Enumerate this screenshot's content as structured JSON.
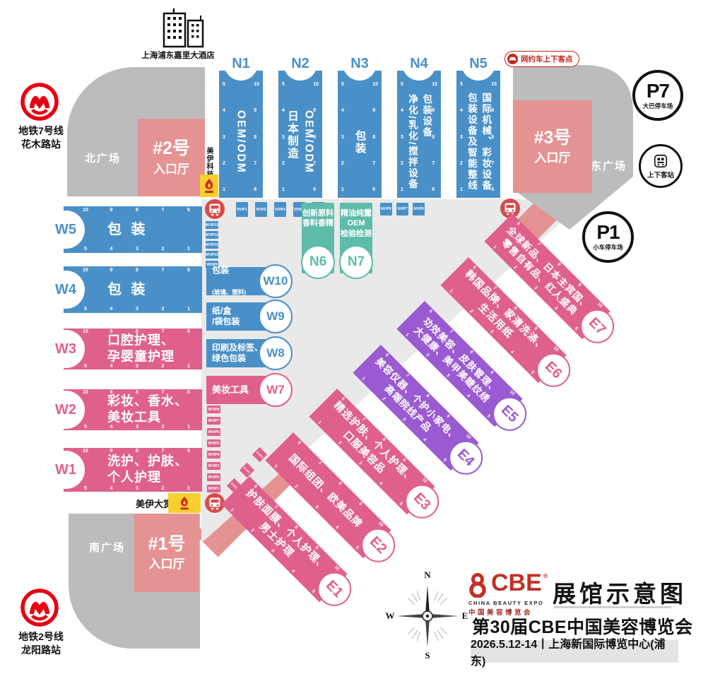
{
  "hotel": {
    "label": "上海浦东嘉里大酒店"
  },
  "metro7": {
    "label": "地铁7号线\n花木路站"
  },
  "metro2": {
    "label": "地铁2号线\n龙阳路站"
  },
  "plazas": {
    "north": "北广场",
    "east": "东广场",
    "south": "南广场"
  },
  "entrances": {
    "e2": {
      "no": "#2号",
      "hall": "入口厅"
    },
    "e3": {
      "no": "#3号",
      "hall": "入口厅"
    },
    "e1": {
      "no": "#1号",
      "hall": "入口厅"
    }
  },
  "parking": {
    "p7": {
      "code": "P7",
      "label": "大巴停车场"
    },
    "p1": {
      "code": "P1",
      "label": "小车停车场"
    },
    "dropoff": {
      "label": "上下客站"
    },
    "rideshare": {
      "label": "网约车上下客点"
    }
  },
  "sponsor": {
    "tech": "美伊科技",
    "award": "美伊大赏"
  },
  "halls": {
    "n": [
      {
        "code": "N1",
        "text": [
          "OEM/ODM"
        ],
        "ticks_left": "5 4 3 2 1",
        "ticks_right": "10 9 8 7 6"
      },
      {
        "code": "N2",
        "text": [
          "OEM/ODM",
          "日本制造"
        ],
        "ticks_left": "5 4 3 2 1",
        "ticks_right": "10 9 8 7 6"
      },
      {
        "code": "N3",
        "text": [
          "包装"
        ],
        "ticks_left": "5 4 3 2 1",
        "ticks_right": "10 9 8 7 6"
      },
      {
        "code": "N4",
        "text": [
          "包装设备",
          "净化/乳化/搅拌设备"
        ],
        "ticks_left": "5 4 3 2 1",
        "ticks_right": "10 9 8 7 6"
      },
      {
        "code": "N5",
        "text": [
          "国际机械、彩妆设备",
          "包装设备及智能整线"
        ],
        "ticks_left": "5 4 3 2 1",
        "ticks_right": "10 9 8 7 6"
      }
    ],
    "n_special": [
      {
        "code": "N6",
        "text": [
          "创新原料",
          "香料香精"
        ]
      },
      {
        "code": "N7",
        "text": [
          "精油纯露",
          "OEM",
          "检验检测"
        ]
      }
    ],
    "w": [
      {
        "code": "W5",
        "label": [
          "包 装"
        ],
        "ticks_top": "10 9 8 7 6",
        "ticks_bottom": "5 4 3 2 1"
      },
      {
        "code": "W4",
        "label": [
          "包 装"
        ],
        "ticks_top": "10 9 8 7 6",
        "ticks_bottom": "5 4 3 2 1"
      },
      {
        "code": "W3",
        "label": [
          "口腔护理、",
          "孕婴童护理"
        ],
        "ticks_top": "10 9 8 7 6",
        "ticks_bottom": "5 4 3 2 1"
      },
      {
        "code": "W2",
        "label": [
          "彩妆、香水、",
          "美妆工具"
        ],
        "ticks_top": "10 9 8 7 6",
        "ticks_bottom": "5 4 3 2 1"
      },
      {
        "code": "W1",
        "label": [
          "洗护、护肤、",
          "个人护理"
        ],
        "ticks_top": "10 9 8 7 6",
        "ticks_bottom": "5 4 3 2 1"
      }
    ],
    "w_small": [
      {
        "code": "W10",
        "label": "包装",
        "sub": "(玻璃、塑料)"
      },
      {
        "code": "W9",
        "label": [
          "纸/盒",
          "/袋包装"
        ],
        "sub": ""
      },
      {
        "code": "W8",
        "label": [
          "印刷及标签、",
          "绿色包装"
        ],
        "sub": ""
      },
      {
        "code": "W7",
        "label": [
          "美妆工具"
        ],
        "sub": ""
      }
    ],
    "e": [
      {
        "code": "E1",
        "lines": [
          "护肤面膜、个人护理、",
          "男士护理"
        ],
        "ticks_top": "6 7 8 9 10",
        "ticks_bottom": "1 2 3 4 5"
      },
      {
        "code": "E2",
        "lines": [
          "国际组团、欧美品牌"
        ],
        "ticks_top": "6 7 8 9 10",
        "ticks_bottom": "1 2 3 4 5"
      },
      {
        "code": "E3",
        "lines": [
          "精选护肤、个人护理、",
          "口服美容品"
        ],
        "ticks_top": "6 7 8 9 10",
        "ticks_bottom": "1 2 3 4 5"
      },
      {
        "code": "E4",
        "lines": [
          "美容仪器、个护小家电、",
          "高端院线产品"
        ],
        "ticks_top": "6 7 8 9 10",
        "ticks_bottom": "1 2 3 4 5"
      },
      {
        "code": "E5",
        "lines": [
          "功效美容、皮肤管理、",
          "大健康、美甲美睫纹绣"
        ],
        "ticks_top": "6 7 8 9 10",
        "ticks_bottom": "1 2 3 4 5"
      },
      {
        "code": "E6",
        "lines": [
          "韩国品牌、家清洗涤、",
          "生活用纸"
        ],
        "ticks_top": "6 7 8 9 10",
        "ticks_bottom": "1 2 3 4 5"
      },
      {
        "code": "E7",
        "lines": [
          "全球新品、日本主宾国、",
          "零售自有品、红人盛典"
        ],
        "ticks_top": "6 7 8 9 10",
        "ticks_bottom": "1 2 3 4 5"
      }
    ]
  },
  "vip": {
    "nvip_left": [
      "NVIP1",
      "NVIP2",
      "NVIP3",
      "NVIP4",
      "NVIP5"
    ],
    "nvip_right": [
      "NVIP6",
      "NVIP7",
      "NVIP8"
    ],
    "wvip_blue": [
      "WVIP13",
      "WVIP12",
      "WVIP11",
      "WVIP10",
      "WVIP9"
    ],
    "wvip_pink": [
      "WVIP8",
      "WVIP7",
      "WVIP6",
      "WVIP5",
      "WVIP4",
      "WVIP3",
      "WVIP2",
      "WVIP1"
    ],
    "evip": [
      "EVIP3",
      "EVIP2",
      "EVIP1"
    ]
  },
  "compass": {
    "n": "N",
    "s": "S",
    "e": "E",
    "w": "W"
  },
  "footer": {
    "logo_text": "CBE",
    "logo_reg": "®",
    "logo_sub1": "CHINA BEAUTY EXPO",
    "logo_sub2": "中国美容博览会",
    "title": "展馆示意图",
    "subtitle": "第30届CBE中国美容博览会",
    "date_venue": "2026.5.12-14丨上海新国际博览中心(浦东)"
  },
  "colors": {
    "blue": "#4a90c8",
    "pink": "#e0608c",
    "purple": "#9a5ad2",
    "teal": "#5ebcab",
    "salmon": "#e59292",
    "plaza": "#bcbcbc",
    "concourse": "#e9e9e9",
    "yellow": "#f7cf2e",
    "metro_red": "#e60012",
    "bus_red": "#d84b4b",
    "cbe_red": "#c13127"
  }
}
